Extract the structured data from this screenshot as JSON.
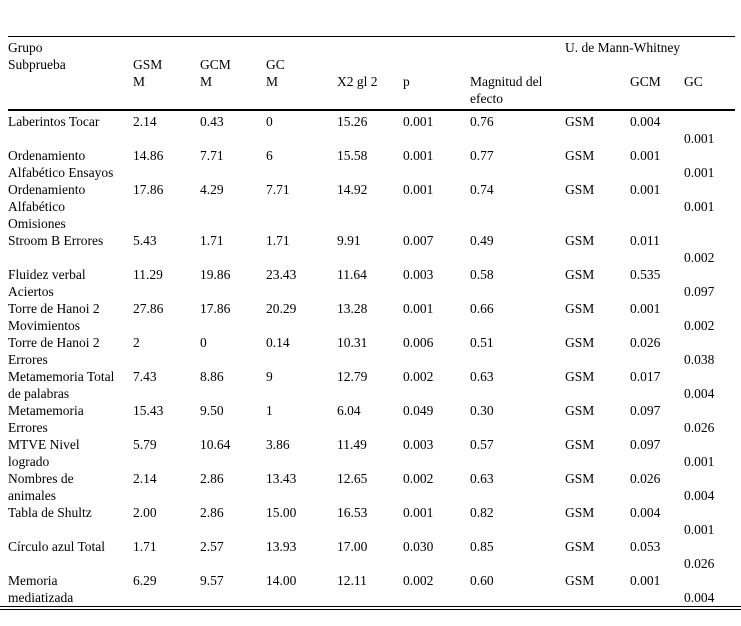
{
  "table": {
    "header": {
      "grupo_subprueba": "Grupo\nSubprueba",
      "gsm_m": "GSM\nM",
      "gcm_m": "GCM\nM",
      "gc_m": "GC\nM",
      "x2": "X2 gl 2",
      "p": "p",
      "magnitud": "Magnitud del\nefecto",
      "mann_whitney": "U. de Mann-Whitney",
      "gcm": "GCM",
      "gc": "GC"
    },
    "rows": [
      {
        "label": "Laberintos Tocar",
        "gsm_m": "2.14",
        "gcm_m": "0.43",
        "gc_m": "0",
        "x2": "15.26",
        "p": "0.001",
        "magnitud": "0.76",
        "grupo": "GSM",
        "gcm_p": "0.004",
        "gc_p": "0.001"
      },
      {
        "label": "Ordenamiento Alfabético Ensayos",
        "gsm_m": "14.86",
        "gcm_m": "7.71",
        "gc_m": "6",
        "x2": "15.58",
        "p": "0.001",
        "magnitud": "0.77",
        "grupo": "GSM",
        "gcm_p": "0.001",
        "gc_p": "0.001"
      },
      {
        "label": "Ordenamiento Alfabético Omisiones",
        "gsm_m": "17.86",
        "gcm_m": "4.29",
        "gc_m": "7.71",
        "x2": "14.92",
        "p": "0.001",
        "magnitud": "0.74",
        "grupo": "GSM",
        "gcm_p": "0.001",
        "gc_p": "0.001"
      },
      {
        "label": "Stroom B Errores",
        "gsm_m": "5.43",
        "gcm_m": "1.71",
        "gc_m": "1.71",
        "x2": "9.91",
        "p": "0.007",
        "magnitud": "0.49",
        "grupo": "GSM",
        "gcm_p": "0.011",
        "gc_p": "0.002"
      },
      {
        "label": "Fluidez verbal Aciertos",
        "gsm_m": "11.29",
        "gcm_m": "19.86",
        "gc_m": "23.43",
        "x2": "11.64",
        "p": "0.003",
        "magnitud": "0.58",
        "grupo": "GSM",
        "gcm_p": "0.535",
        "gc_p": "0.097"
      },
      {
        "label": "Torre de Hanoi 2 Movimientos",
        "gsm_m": "27.86",
        "gcm_m": "17.86",
        "gc_m": "20.29",
        "x2": "13.28",
        "p": "0.001",
        "magnitud": "0.66",
        "grupo": "GSM",
        "gcm_p": "0.001",
        "gc_p": "0.002"
      },
      {
        "label": "Torre de Hanoi 2 Errores",
        "gsm_m": "2",
        "gcm_m": "0",
        "gc_m": "0.14",
        "x2": "10.31",
        "p": "0.006",
        "magnitud": "0.51",
        "grupo": "GSM",
        "gcm_p": "0.026",
        "gc_p": "0.038"
      },
      {
        "label": "Metamemoria Total de palabras",
        "gsm_m": "7.43",
        "gcm_m": "8.86",
        "gc_m": "9",
        "x2": "12.79",
        "p": "0.002",
        "magnitud": "0.63",
        "grupo": "GSM",
        "gcm_p": "0.017",
        "gc_p": "0.004"
      },
      {
        "label": "Metamemoria Errores",
        "gsm_m": "15.43",
        "gcm_m": "9.50",
        "gc_m": "1",
        "x2": "6.04",
        "p": "0.049",
        "magnitud": "0.30",
        "grupo": "GSM",
        "gcm_p": "0.097",
        "gc_p": "0.026"
      },
      {
        "label": "MTVE Nivel logrado",
        "gsm_m": "5.79",
        "gcm_m": "10.64",
        "gc_m": "3.86",
        "x2": "11.49",
        "p": "0.003",
        "magnitud": "0.57",
        "grupo": "GSM",
        "gcm_p": "0.097",
        "gc_p": "0.001"
      },
      {
        "label": "Nombres de animales",
        "gsm_m": "2.14",
        "gcm_m": "2.86",
        "gc_m": "13.43",
        "x2": "12.65",
        "p": "0.002",
        "magnitud": "0.63",
        "grupo": "GSM",
        "gcm_p": "0.026",
        "gc_p": "0.004"
      },
      {
        "label": "Tabla de Shultz",
        "gsm_m": "2.00",
        "gcm_m": "2.86",
        "gc_m": "15.00",
        "x2": "16.53",
        "p": "0.001",
        "magnitud": "0.82",
        "grupo": "GSM",
        "gcm_p": "0.004",
        "gc_p": "0.001"
      },
      {
        "label": "Círculo azul Total",
        "gsm_m": "1.71",
        "gcm_m": "2.57",
        "gc_m": "13.93",
        "x2": "17.00",
        "p": "0.030",
        "magnitud": "0.85",
        "grupo": "GSM",
        "gcm_p": "0.053",
        "gc_p": "0.026"
      },
      {
        "label": "Memoria mediatizada",
        "gsm_m": "6.29",
        "gcm_m": "9.57",
        "gc_m": "14.00",
        "x2": "12.11",
        "p": "0.002",
        "magnitud": "0.60",
        "grupo": "GSM",
        "gcm_p": "0.001",
        "gc_p": "0.004"
      }
    ]
  }
}
